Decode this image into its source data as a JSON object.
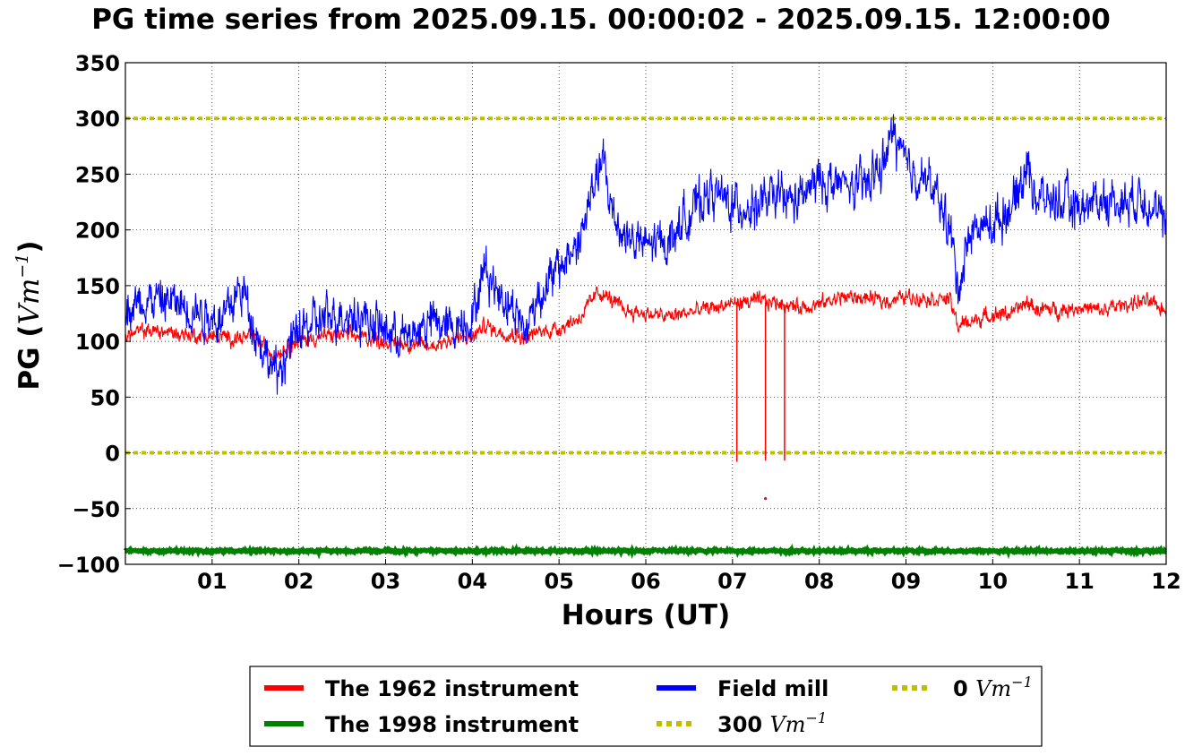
{
  "chart_data": {
    "type": "line",
    "title": "PG time series from 2025.09.15. 00:00:02 - 2025.09.15. 12:00:00",
    "xlabel": "Hours (UT)",
    "ylabel_prefix": "PG (",
    "ylabel_unit": "Vm",
    "ylabel_exp": "−1",
    "ylabel_suffix": ")",
    "xlim": [
      0,
      12
    ],
    "ylim": [
      -100,
      350
    ],
    "grid": true,
    "x_ticks": [
      "01",
      "02",
      "03",
      "04",
      "05",
      "06",
      "07",
      "08",
      "09",
      "10",
      "11",
      "12"
    ],
    "y_ticks": [
      "350",
      "300",
      "250",
      "200",
      "150",
      "100",
      "50",
      "0",
      "−50",
      "−100"
    ],
    "y_tick_values": [
      350,
      300,
      250,
      200,
      150,
      100,
      50,
      0,
      -50,
      -100
    ],
    "legend_position": "bottom-center",
    "series": [
      {
        "name": "The 1962 instrument",
        "color": "#ff0000",
        "x": [
          0,
          0.25,
          0.5,
          0.75,
          1,
          1.25,
          1.5,
          1.6,
          1.7,
          1.75,
          1.85,
          2,
          2.25,
          2.5,
          2.75,
          3,
          3.25,
          3.5,
          3.75,
          4,
          4.15,
          4.25,
          4.5,
          4.6,
          4.75,
          5,
          5.25,
          5.45,
          5.5,
          5.75,
          6,
          6.25,
          6.5,
          6.75,
          7,
          7.25,
          7.5,
          7.75,
          8,
          8.25,
          8.5,
          8.75,
          9,
          9.25,
          9.5,
          9.6,
          9.75,
          10,
          10.25,
          10.4,
          10.5,
          10.75,
          11,
          11.25,
          11.5,
          11.75,
          12
        ],
        "y": [
          105,
          110,
          108,
          106,
          104,
          103,
          104,
          96,
          89,
          90,
          95,
          100,
          104,
          106,
          104,
          100,
          98,
          95,
          102,
          103,
          115,
          110,
          106,
          103,
          108,
          112,
          122,
          144,
          143,
          128,
          125,
          122,
          126,
          130,
          134,
          136,
          135,
          131,
          133,
          140,
          139,
          136,
          140,
          139,
          138,
          114,
          118,
          124,
          126,
          135,
          129,
          128,
          131,
          127,
          133,
          136,
          128
        ],
        "spikes": [
          {
            "x": 7.05,
            "y": -8
          },
          {
            "x": 7.38,
            "y": -7
          },
          {
            "x": 7.6,
            "y": -7
          }
        ],
        "stray_point": {
          "x": 7.38,
          "y": -41
        }
      },
      {
        "name": "The 1998 instrument",
        "color": "#008000",
        "x": [
          0,
          12
        ],
        "y": [
          -88,
          -88
        ]
      },
      {
        "name": "Field mill",
        "color": "#0000ff",
        "x": [
          0,
          0.25,
          0.5,
          0.75,
          1,
          1.1,
          1.2,
          1.35,
          1.5,
          1.6,
          1.75,
          1.85,
          2,
          2.25,
          2.5,
          2.75,
          3,
          3.25,
          3.5,
          3.75,
          4,
          4.15,
          4.25,
          4.5,
          4.6,
          4.75,
          5,
          5.25,
          5.4,
          5.5,
          5.6,
          5.75,
          6,
          6.25,
          6.5,
          6.75,
          7,
          7.25,
          7.5,
          7.75,
          8,
          8.25,
          8.5,
          8.75,
          8.85,
          9,
          9.25,
          9.5,
          9.6,
          9.75,
          10,
          10.25,
          10.4,
          10.5,
          10.75,
          11,
          11.25,
          11.5,
          11.75,
          12
        ],
        "y": [
          130,
          138,
          136,
          130,
          123,
          118,
          132,
          148,
          110,
          90,
          68,
          88,
          110,
          118,
          126,
          122,
          110,
          102,
          118,
          112,
          122,
          168,
          150,
          128,
          108,
          140,
          165,
          192,
          240,
          262,
          220,
          195,
          185,
          190,
          215,
          235,
          222,
          220,
          230,
          225,
          245,
          240,
          238,
          260,
          290,
          255,
          245,
          205,
          148,
          200,
          205,
          225,
          260,
          230,
          225,
          220,
          228,
          225,
          232,
          200
        ]
      },
      {
        "name": "300 Vm⁻¹",
        "color": "#bfbf00",
        "x": [
          0,
          12
        ],
        "y": [
          300,
          300
        ]
      },
      {
        "name": "0 Vm⁻¹",
        "color": "#bfbf00",
        "x": [
          0,
          12
        ],
        "y": [
          0,
          0
        ]
      }
    ],
    "legend": [
      {
        "label": "The 1962 instrument",
        "unit": "",
        "exp": "",
        "color": "#ff0000",
        "style": "solid"
      },
      {
        "label": "The 1998 instrument",
        "unit": "",
        "exp": "",
        "color": "#008000",
        "style": "solid"
      },
      {
        "label": "Field mill",
        "unit": "",
        "exp": "",
        "color": "#0000ff",
        "style": "solid"
      },
      {
        "label": "300 ",
        "unit": "Vm",
        "exp": "−1",
        "color": "#bfbf00",
        "style": "dotted"
      },
      {
        "label": "0 ",
        "unit": "Vm",
        "exp": "−1",
        "color": "#bfbf00",
        "style": "dotted"
      }
    ]
  }
}
